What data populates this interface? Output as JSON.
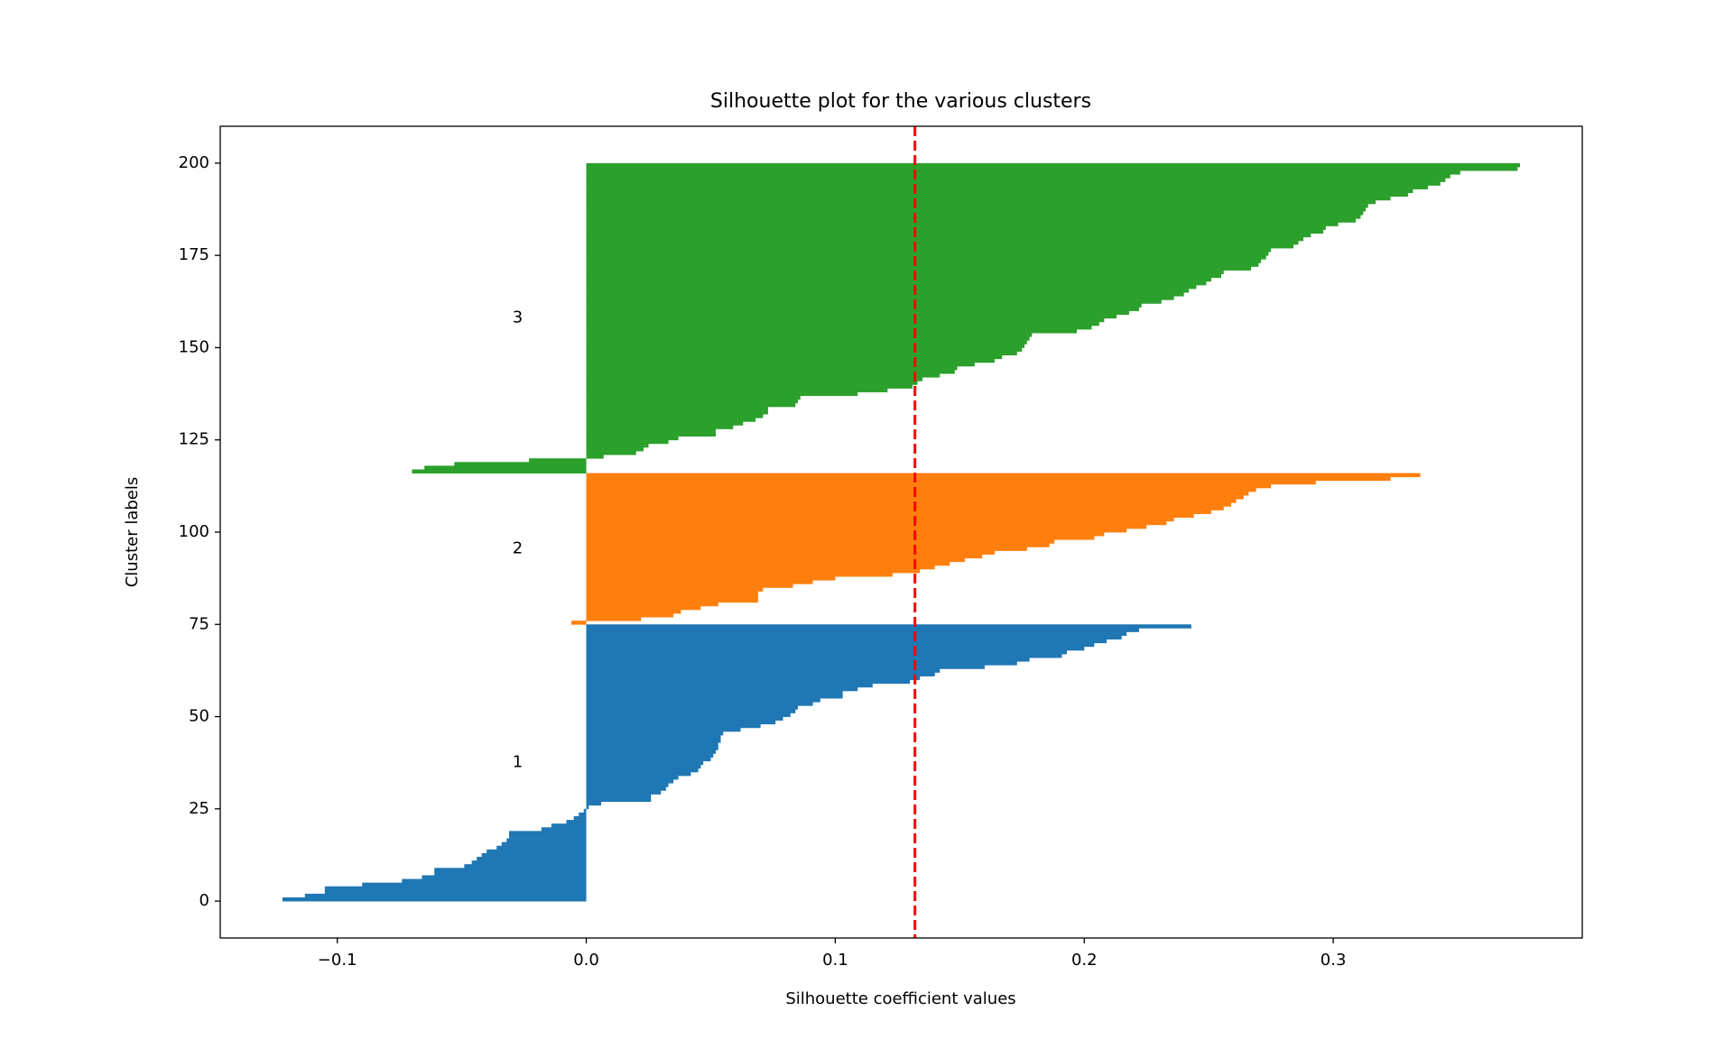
{
  "chart_data": {
    "type": "silhouette",
    "title": "Silhouette plot for the various clusters",
    "x_label": "Silhouette coefficient values",
    "y_label": "Cluster labels",
    "xlim": [
      -0.147,
      0.4
    ],
    "ylim": [
      -10,
      210
    ],
    "xticks": [
      {
        "value": -0.1,
        "label": "−0.1"
      },
      {
        "value": 0,
        "label": "0.0"
      },
      0.1,
      0.2,
      0.3
    ],
    "yticks": [
      0,
      25,
      50,
      75,
      100,
      125,
      150,
      175,
      200
    ],
    "average_line": {
      "value": 0.132,
      "color": "#ff0000"
    },
    "series": [
      {
        "name": "1",
        "color": "#1f77b4",
        "values": [
          -0.122,
          -0.113,
          -0.105,
          -0.105,
          -0.09,
          -0.074,
          -0.066,
          -0.061,
          -0.061,
          -0.049,
          -0.046,
          -0.044,
          -0.042,
          -0.04,
          -0.036,
          -0.034,
          -0.032,
          -0.031,
          -0.031,
          -0.018,
          -0.014,
          -0.008,
          -0.005,
          -0.003,
          -0.001,
          0.001,
          0.006,
          0.026,
          0.026,
          0.03,
          0.032,
          0.033,
          0.035,
          0.037,
          0.042,
          0.045,
          0.046,
          0.047,
          0.05,
          0.051,
          0.052,
          0.053,
          0.053,
          0.054,
          0.054,
          0.055,
          0.062,
          0.07,
          0.076,
          0.079,
          0.082,
          0.084,
          0.085,
          0.091,
          0.094,
          0.103,
          0.103,
          0.109,
          0.115,
          0.13,
          0.134,
          0.14,
          0.142,
          0.16,
          0.173,
          0.178,
          0.191,
          0.193,
          0.2,
          0.204,
          0.209,
          0.215,
          0.217,
          0.222,
          0.243
        ]
      },
      {
        "name": "2",
        "color": "#ff7f0e",
        "values": [
          -0.006,
          0.022,
          0.035,
          0.038,
          0.046,
          0.053,
          0.069,
          0.069,
          0.069,
          0.071,
          0.083,
          0.091,
          0.1,
          0.123,
          0.134,
          0.14,
          0.146,
          0.152,
          0.159,
          0.164,
          0.177,
          0.186,
          0.188,
          0.204,
          0.208,
          0.217,
          0.225,
          0.233,
          0.236,
          0.244,
          0.251,
          0.256,
          0.259,
          0.261,
          0.264,
          0.266,
          0.269,
          0.275,
          0.293,
          0.323,
          0.335
        ]
      },
      {
        "name": "3",
        "color": "#2ca02c",
        "values": [
          -0.07,
          -0.065,
          -0.053,
          -0.023,
          0.007,
          0.02,
          0.023,
          0.025,
          0.033,
          0.037,
          0.052,
          0.052,
          0.059,
          0.063,
          0.068,
          0.071,
          0.073,
          0.073,
          0.084,
          0.085,
          0.086,
          0.109,
          0.121,
          0.131,
          0.133,
          0.135,
          0.142,
          0.148,
          0.149,
          0.156,
          0.164,
          0.167,
          0.173,
          0.175,
          0.176,
          0.177,
          0.178,
          0.179,
          0.197,
          0.203,
          0.206,
          0.208,
          0.213,
          0.218,
          0.222,
          0.223,
          0.231,
          0.236,
          0.24,
          0.242,
          0.245,
          0.249,
          0.251,
          0.255,
          0.256,
          0.267,
          0.27,
          0.271,
          0.273,
          0.274,
          0.275,
          0.284,
          0.286,
          0.288,
          0.291,
          0.296,
          0.297,
          0.302,
          0.309,
          0.311,
          0.312,
          0.313,
          0.314,
          0.317,
          0.323,
          0.33,
          0.332,
          0.338,
          0.343,
          0.345,
          0.347,
          0.351,
          0.374,
          0.375
        ]
      }
    ]
  }
}
